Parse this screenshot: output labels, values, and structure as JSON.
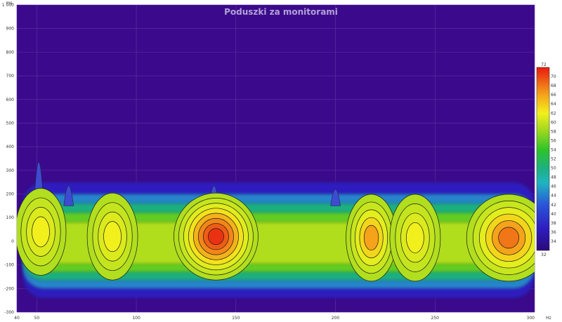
{
  "chart_data": {
    "type": "heatmap",
    "title": "Poduszki za monitorami",
    "ylabel": "ms",
    "xunit": "Hz",
    "xlim": [
      40,
      300
    ],
    "ylim": [
      -300,
      1000
    ],
    "x_ticks": [
      {
        "v": 40,
        "label": "40"
      },
      {
        "v": 50,
        "label": "50"
      },
      {
        "v": 100,
        "label": "100"
      },
      {
        "v": 150,
        "label": "150"
      },
      {
        "v": 200,
        "label": "200"
      },
      {
        "v": 250,
        "label": "250"
      },
      {
        "v": 300,
        "label": "300"
      }
    ],
    "y_ticks": [
      {
        "v": 1000,
        "label": "1 000"
      },
      {
        "v": 900,
        "label": "900"
      },
      {
        "v": 800,
        "label": "800"
      },
      {
        "v": 700,
        "label": "700"
      },
      {
        "v": 600,
        "label": "600"
      },
      {
        "v": 500,
        "label": "500"
      },
      {
        "v": 400,
        "label": "400"
      },
      {
        "v": 300,
        "label": "300"
      },
      {
        "v": 200,
        "label": "200"
      },
      {
        "v": 100,
        "label": "100"
      },
      {
        "v": 0,
        "label": "0"
      },
      {
        "v": -100,
        "label": "-100"
      },
      {
        "v": -200,
        "label": "-200"
      },
      {
        "v": -300,
        "label": "-300"
      }
    ],
    "colorbar": {
      "min": 32,
      "max": 72,
      "labels": [
        "72",
        "70",
        "68",
        "66",
        "64",
        "62",
        "60",
        "58",
        "56",
        "54",
        "52",
        "50",
        "48",
        "46",
        "44",
        "42",
        "40",
        "38",
        "36",
        "34",
        "32"
      ],
      "levels": [
        72,
        70,
        68,
        66,
        64,
        62,
        60,
        58,
        56,
        54,
        52,
        50,
        48,
        46,
        44,
        42,
        40,
        38,
        36,
        34,
        32
      ]
    },
    "grid": true,
    "peaks": [
      {
        "x": 52,
        "y": 40,
        "value": 63
      },
      {
        "x": 88,
        "y": 20,
        "value": 63
      },
      {
        "x": 140,
        "y": 20,
        "value": 71
      },
      {
        "x": 218,
        "y": 15,
        "value": 66
      },
      {
        "x": 240,
        "y": 15,
        "value": 63
      },
      {
        "x": 287,
        "y": 15,
        "value": 68
      }
    ],
    "colors": {
      "background": "#3b0a8c",
      "title": "#b3a2d6",
      "contour": "#1a1a1a"
    }
  }
}
